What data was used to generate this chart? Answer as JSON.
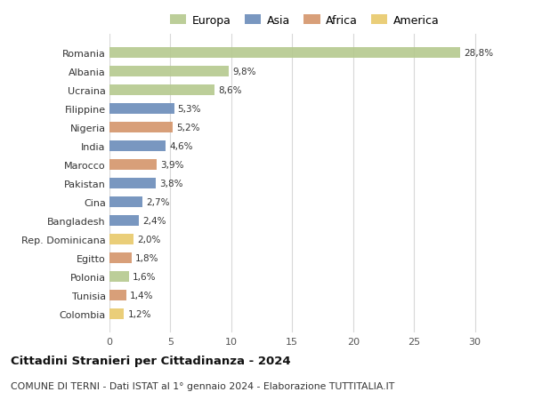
{
  "countries": [
    "Romania",
    "Albania",
    "Ucraina",
    "Filippine",
    "Nigeria",
    "India",
    "Marocco",
    "Pakistan",
    "Cina",
    "Bangladesh",
    "Rep. Dominicana",
    "Egitto",
    "Polonia",
    "Tunisia",
    "Colombia"
  ],
  "values": [
    28.8,
    9.8,
    8.6,
    5.3,
    5.2,
    4.6,
    3.9,
    3.8,
    2.7,
    2.4,
    2.0,
    1.8,
    1.6,
    1.4,
    1.2
  ],
  "labels": [
    "28,8%",
    "9,8%",
    "8,6%",
    "5,3%",
    "5,2%",
    "4,6%",
    "3,9%",
    "3,8%",
    "2,7%",
    "2,4%",
    "2,0%",
    "1,8%",
    "1,6%",
    "1,4%",
    "1,2%"
  ],
  "regions": [
    "Europa",
    "Europa",
    "Europa",
    "Asia",
    "Africa",
    "Asia",
    "Africa",
    "Asia",
    "Asia",
    "Asia",
    "America",
    "Africa",
    "Europa",
    "Africa",
    "America"
  ],
  "colors": {
    "Europa": "#b5c98e",
    "Asia": "#6b8cba",
    "Africa": "#d4956a",
    "America": "#e8c96b"
  },
  "title": "Cittadini Stranieri per Cittadinanza - 2024",
  "subtitle": "COMUNE DI TERNI - Dati ISTAT al 1° gennaio 2024 - Elaborazione TUTTITALIA.IT",
  "xlim": [
    0,
    32
  ],
  "xticks": [
    0,
    5,
    10,
    15,
    20,
    25,
    30
  ],
  "background_color": "#ffffff",
  "grid_color": "#d8d8d8"
}
